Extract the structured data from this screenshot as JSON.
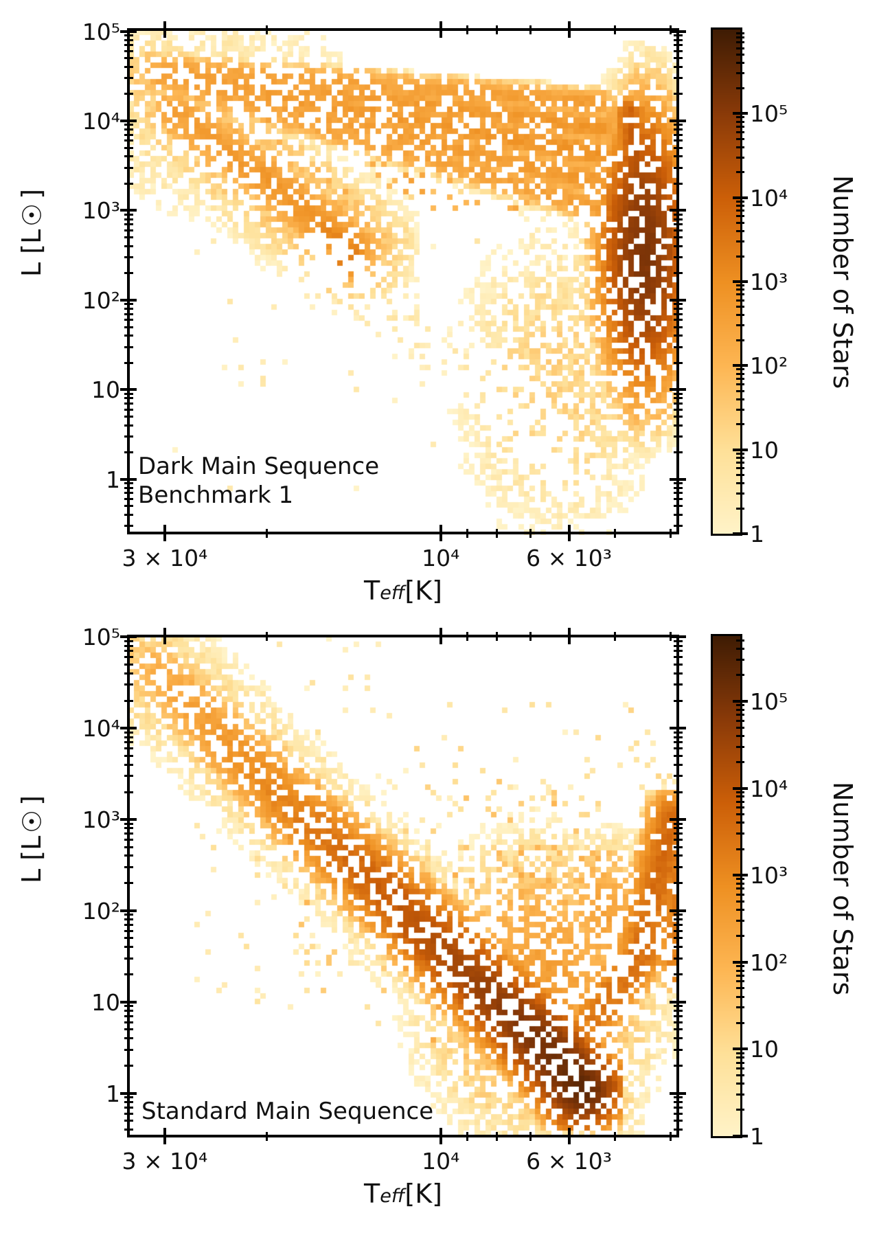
{
  "figure": {
    "background": "#ffffff",
    "accent_black": "#000000",
    "colormap_name": "YlOrBr-like",
    "colormap_stops": [
      [
        255,
        243,
        200
      ],
      [
        254,
        224,
        152
      ],
      [
        253,
        182,
        83
      ],
      [
        238,
        144,
        34
      ],
      [
        204,
        95,
        8
      ],
      [
        138,
        58,
        8
      ],
      [
        63,
        28,
        4
      ]
    ]
  },
  "chart_data": [
    {
      "type": "heatmap",
      "annotation": {
        "line1": "Dark Main Sequence",
        "line2": "Benchmark 1"
      },
      "xlabel_main": "T",
      "xlabel_sub": "eff",
      "xlabel_unit": " [K]",
      "ylabel": "L [L☉]",
      "colorbar_label": "Number of Stars",
      "x_range_K": [
        34674,
        3890
      ],
      "y_range_Lsun": [
        0.251,
        104713
      ],
      "color_range": [
        1,
        1000000
      ],
      "x_scale": "log-reversed",
      "y_scale": "log",
      "grid": false,
      "x_major_ticks": [
        {
          "v": 30000,
          "label": "3 × 10⁴"
        },
        {
          "v": 10000,
          "label": "10⁴"
        },
        {
          "v": 6000,
          "label": "6 × 10³"
        }
      ],
      "x_minor_ticks": [
        20000,
        9000,
        8000,
        7000,
        5000,
        4000
      ],
      "y_major_ticks": [
        {
          "v": 100000,
          "label": "10⁵"
        },
        {
          "v": 10000,
          "label": "10⁴"
        },
        {
          "v": 1000,
          "label": "10³"
        },
        {
          "v": 100,
          "label": "10²"
        },
        {
          "v": 10,
          "label": "10"
        },
        {
          "v": 1,
          "label": "1"
        }
      ],
      "colorbar_ticks": [
        {
          "v": 100000,
          "label": "10⁵"
        },
        {
          "v": 10000,
          "label": "10⁴"
        },
        {
          "v": 1000,
          "label": "10³"
        },
        {
          "v": 100,
          "label": "10²"
        },
        {
          "v": 10,
          "label": "10"
        },
        {
          "v": 1,
          "label": "1"
        }
      ],
      "seed": 42,
      "features": [
        {
          "t": "blob",
          "c": [
            4.5,
            4.52
          ],
          "s": [
            0.03,
            0.2
          ],
          "p": 40,
          "h": 0.3
        },
        {
          "t": "scatter",
          "r": [
            4.54,
            4.18,
            4.4,
            4.98
          ],
          "d": 0.06,
          "lo": 1,
          "hi": 8
        },
        {
          "t": "blob",
          "c": [
            4.37,
            4.03
          ],
          "s": [
            0.1,
            0.42
          ],
          "p": 22,
          "h": 0.4
        },
        {
          "t": "band",
          "pts": [
            [
              4.492,
              4.6
            ],
            [
              3.728,
              4.2
            ]
          ],
          "w": 1.1,
          "p": [
            260,
            420
          ],
          "h": 0.15
        },
        {
          "t": "band",
          "pts": [
            [
              4.49,
              4.55
            ],
            [
              3.722,
              3.93
            ]
          ],
          "w": 1.2,
          "p": [
            320,
            650
          ],
          "h": 0.2
        },
        {
          "t": "band",
          "pts": [
            [
              4.484,
              4.51
            ],
            [
              3.72,
              3.63
            ]
          ],
          "w": 1.2,
          "p": [
            380,
            850
          ],
          "h": 0.25
        },
        {
          "t": "band",
          "pts": [
            [
              4.476,
              4.46
            ],
            [
              3.722,
              3.31
            ]
          ],
          "w": 1.2,
          "p": [
            260,
            560
          ],
          "h": 0.3
        },
        {
          "t": "band",
          "pts": [
            [
              4.466,
              4.41
            ],
            [
              3.728,
              3.04
            ]
          ],
          "w": 1.1,
          "p": [
            200,
            400
          ],
          "h": 0.35
        },
        {
          "t": "scatter",
          "r": [
            4.3,
            3.72,
            3.1,
            4.25
          ],
          "d": 0.1,
          "lo": 20,
          "hi": 300
        },
        {
          "t": "band",
          "pts": [
            [
              4.458,
              4.12
            ],
            [
              4.3,
              3.37
            ],
            [
              4.15,
              2.6
            ]
          ],
          "w": 4.2,
          "p": [
            50,
            110
          ],
          "h": 0.25
        },
        {
          "t": "band",
          "pts": [
            [
              4.458,
              4.1
            ],
            [
              4.3,
              3.35
            ],
            [
              4.152,
              2.58
            ]
          ],
          "w": 2.0,
          "p": [
            350,
            950
          ],
          "h": 0.04
        },
        {
          "t": "band",
          "pts": [
            [
              4.205,
              2.8
            ],
            [
              4.15,
              2.56
            ],
            [
              4.17,
              2.4
            ]
          ],
          "w": 1.2,
          "p": [
            1400,
            2600
          ],
          "h": 0.04
        },
        {
          "t": "blob",
          "c": [
            3.648,
            2.55
          ],
          "s": [
            0.024,
            0.48
          ],
          "p": 150000,
          "h": 0.24
        },
        {
          "t": "band",
          "pts": [
            [
              3.672,
              4.1
            ],
            [
              3.66,
              3.45
            ]
          ],
          "w": 1.1,
          "p": [
            8000,
            28000
          ],
          "h": 0.12
        },
        {
          "t": "band",
          "pts": [
            [
              3.624,
              3.66
            ],
            [
              3.624,
              2.35
            ]
          ],
          "w": 1.3,
          "p": [
            5000,
            9000
          ],
          "h": 0.06
        },
        {
          "t": "band",
          "pts": [
            [
              3.6,
              3.42
            ],
            [
              3.6,
              2.3
            ]
          ],
          "w": 1.2,
          "p": [
            1300,
            2100
          ],
          "h": 0.06
        },
        {
          "t": "band",
          "pts": [
            [
              3.65,
              1.95
            ],
            [
              3.656,
              1.5
            ]
          ],
          "w": 1.5,
          "p": [
            28000,
            7000
          ],
          "h": 0.28
        },
        {
          "t": "scatter",
          "r": [
            3.76,
            3.59,
            1.25,
            4.15
          ],
          "d": 0.17,
          "lo": 2,
          "hi": 70
        },
        {
          "t": "scatter",
          "r": [
            3.75,
            3.6,
            3.35,
            4.15
          ],
          "d": 0.22,
          "lo": 30,
          "hi": 350
        },
        {
          "t": "blob",
          "c": [
            3.795,
            1.12
          ],
          "s": [
            0.075,
            0.7
          ],
          "p": 20,
          "h": 0.42
        },
        {
          "t": "band",
          "pts": [
            [
              4.215,
              2.38
            ],
            [
              3.93,
              1.15
            ],
            [
              3.77,
              0.12
            ]
          ],
          "w": 3.2,
          "p": [
            3,
            3
          ],
          "h": 0.8
        },
        {
          "t": "scatter",
          "r": [
            4.46,
            3.62,
            0.0,
            4.3
          ],
          "d": 0.012,
          "lo": 1,
          "hi": 4
        }
      ]
    },
    {
      "type": "heatmap",
      "annotation": {
        "line1": "Standard Main Sequence",
        "line2": ""
      },
      "xlabel_main": "T",
      "xlabel_sub": "eff",
      "xlabel_unit": " [K]",
      "ylabel": "L [L☉]",
      "colorbar_label": "Number of Stars",
      "x_range_K": [
        34674,
        3890
      ],
      "y_range_Lsun": [
        0.339,
        102329
      ],
      "color_range": [
        1,
        562341
      ],
      "x_scale": "log-reversed",
      "y_scale": "log",
      "grid": false,
      "x_major_ticks": [
        {
          "v": 30000,
          "label": "3 × 10⁴"
        },
        {
          "v": 10000,
          "label": "10⁴"
        },
        {
          "v": 6000,
          "label": "6 × 10³"
        }
      ],
      "x_minor_ticks": [
        20000,
        9000,
        8000,
        7000,
        5000,
        4000
      ],
      "y_major_ticks": [
        {
          "v": 100000,
          "label": "10⁵"
        },
        {
          "v": 10000,
          "label": "10⁴"
        },
        {
          "v": 1000,
          "label": "10³"
        },
        {
          "v": 100,
          "label": "10²"
        },
        {
          "v": 10,
          "label": "10"
        },
        {
          "v": 1,
          "label": "1"
        }
      ],
      "colorbar_ticks": [
        {
          "v": 100000,
          "label": "10⁵"
        },
        {
          "v": 10000,
          "label": "10⁴"
        },
        {
          "v": 1000,
          "label": "10³"
        },
        {
          "v": 100,
          "label": "10²"
        },
        {
          "v": 10,
          "label": "10"
        },
        {
          "v": 1,
          "label": "1"
        }
      ],
      "seed": 7,
      "features": [
        {
          "t": "blob",
          "c": [
            4.505,
            4.62
          ],
          "s": [
            0.035,
            0.28
          ],
          "p": 35,
          "h": 0.3
        },
        {
          "t": "scatter",
          "r": [
            4.54,
            4.12,
            4.35,
            5.0
          ],
          "d": 0.05,
          "lo": 1,
          "hi": 6
        },
        {
          "t": "band",
          "pts": [
            [
              4.49,
              4.62
            ],
            [
              4.286,
              3.32
            ],
            [
              4.108,
              2.27
            ],
            [
              3.93,
              1.18
            ],
            [
              3.823,
              0.54
            ],
            [
              3.757,
              0.05
            ]
          ],
          "w": 4.6,
          "p": [
            22,
            55
          ],
          "h": 0.38
        },
        {
          "t": "band",
          "pts": [
            [
              4.49,
              4.6
            ],
            [
              4.286,
              3.32
            ],
            [
              4.108,
              2.27
            ],
            [
              3.93,
              1.18
            ],
            [
              3.823,
              0.54
            ],
            [
              3.757,
              0.05
            ]
          ],
          "w": 2.4,
          "p": [
            140,
            230000
          ],
          "h": 0.05
        },
        {
          "t": "blob",
          "c": [
            3.83,
            1.15
          ],
          "s": [
            0.072,
            0.55
          ],
          "p": 320,
          "h": 0.4
        },
        {
          "t": "blob",
          "c": [
            3.716,
            1.95
          ],
          "s": [
            0.026,
            0.3
          ],
          "p": 260,
          "h": 0.06
        },
        {
          "t": "band",
          "pts": [
            [
              3.7,
              1.0
            ],
            [
              3.625,
              2.2
            ]
          ],
          "w": 2.2,
          "p": [
            60,
            130
          ],
          "h": 0.1
        },
        {
          "t": "band",
          "pts": [
            [
              3.73,
              0.85
            ],
            [
              3.655,
              1.52
            ],
            [
              3.598,
              3.02
            ]
          ],
          "w": 1.8,
          "p": [
            2500,
            4200
          ],
          "h": 0.1
        },
        {
          "t": "band",
          "pts": [
            [
              3.596,
              1.3
            ],
            [
              3.596,
              3.02
            ]
          ],
          "w": 1.1,
          "p": [
            1500,
            2500
          ],
          "h": 0.1
        },
        {
          "t": "scatter",
          "r": [
            3.62,
            3.59,
            3.05,
            3.45
          ],
          "d": 0.3,
          "lo": 2,
          "hi": 25
        },
        {
          "t": "scatter",
          "r": [
            4.42,
            3.64,
            0.85,
            4.25
          ],
          "d": 0.045,
          "lo": 1,
          "hi": 9
        },
        {
          "t": "scatter",
          "r": [
            4.02,
            3.69,
            0.6,
            2.7
          ],
          "d": 0.3,
          "lo": 5,
          "hi": 150
        },
        {
          "t": "scatter",
          "r": [
            4.25,
            3.75,
            1.2,
            3.4
          ],
          "d": 0.1,
          "lo": 2,
          "hi": 40
        }
      ]
    }
  ]
}
